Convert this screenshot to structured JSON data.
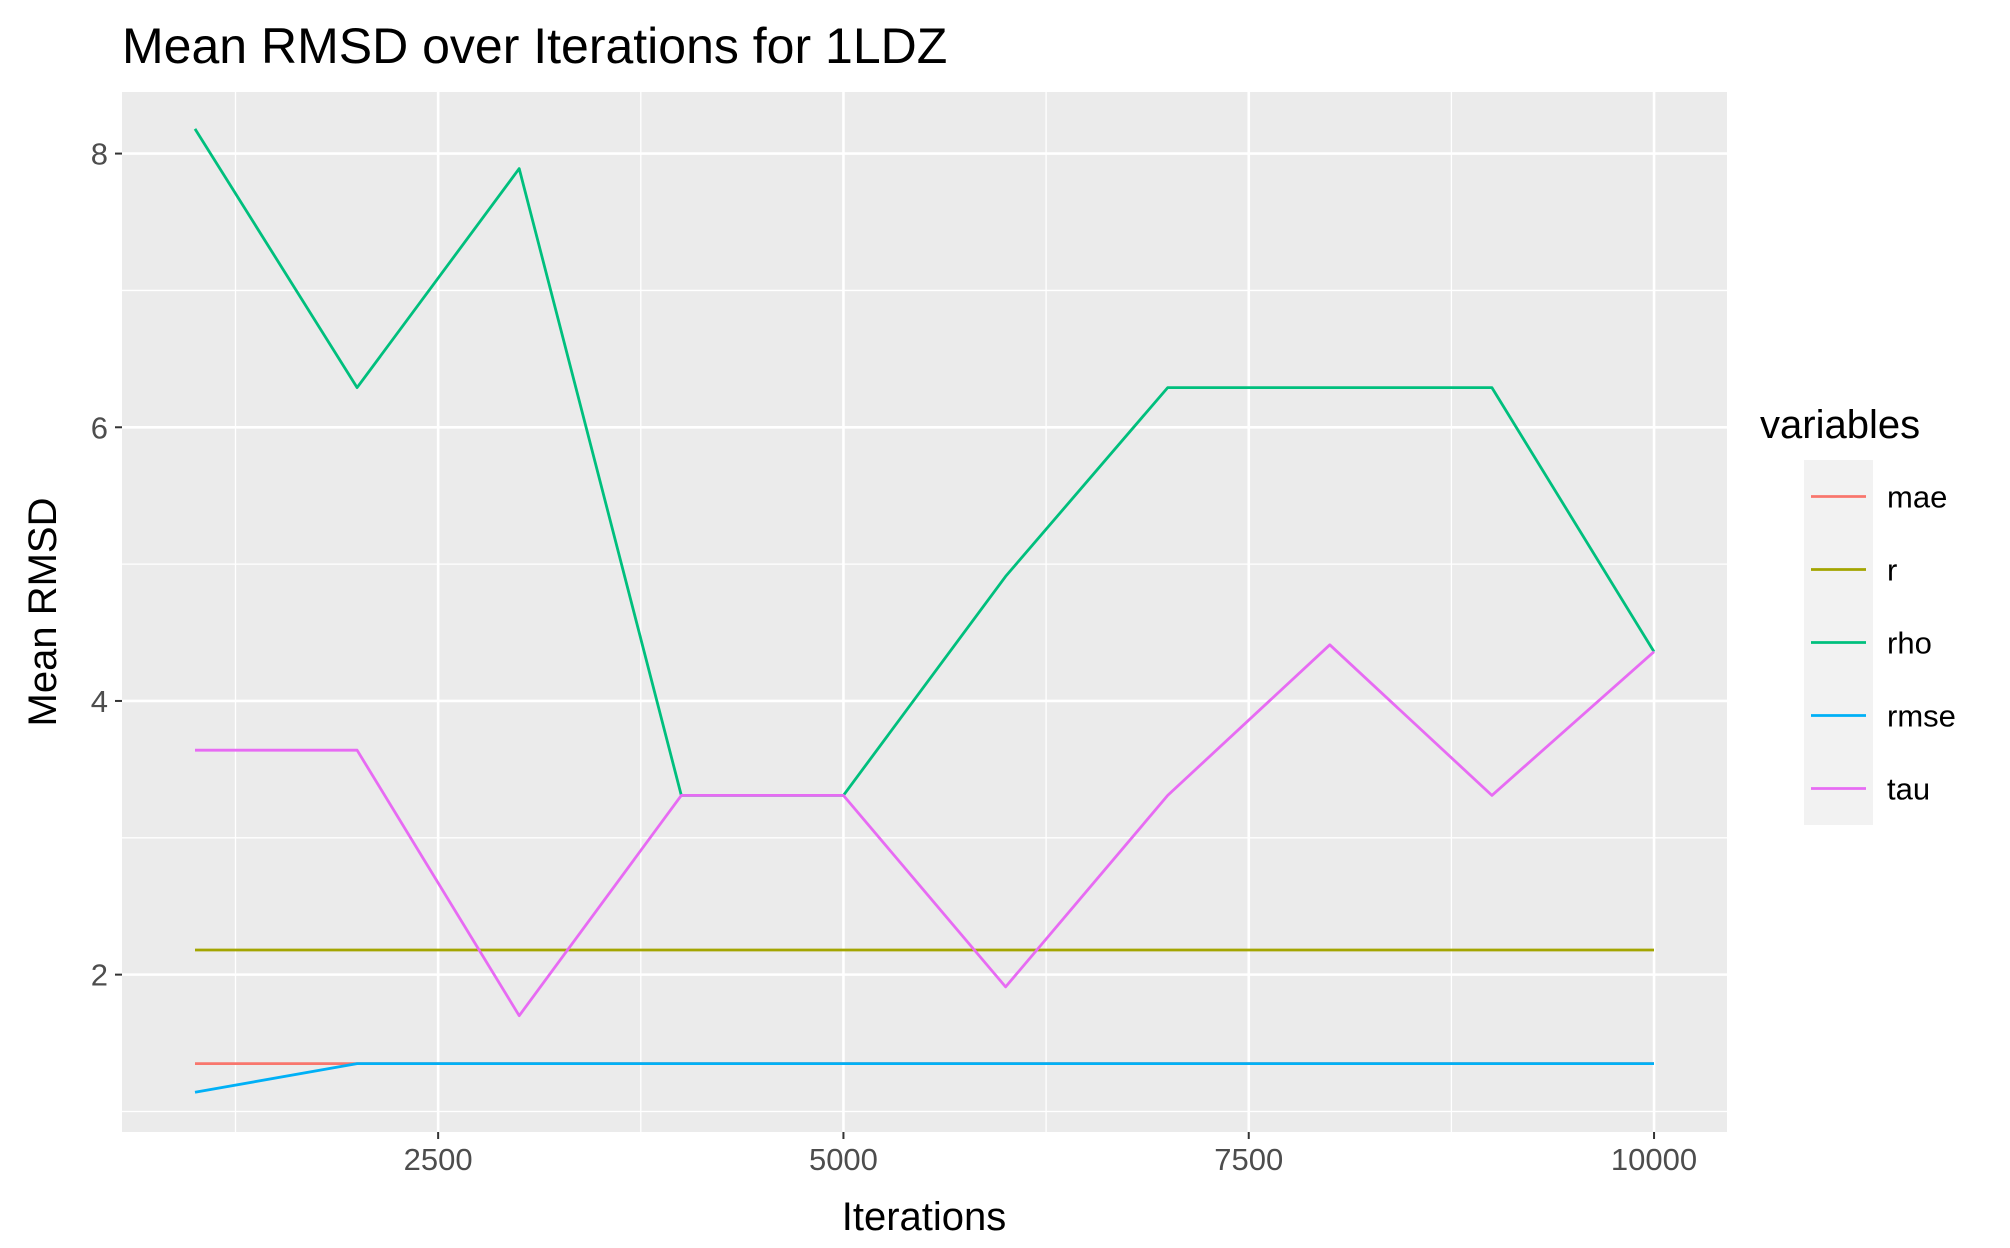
{
  "chart_data": {
    "type": "line",
    "title": "Mean RMSD over Iterations for 1LDZ",
    "xlabel": "Iterations",
    "ylabel": "Mean RMSD",
    "x": [
      1000,
      2000,
      3000,
      4000,
      5000,
      6000,
      7000,
      8000,
      9000,
      10000
    ],
    "xlim": [
      550,
      10450
    ],
    "ylim": [
      0.85,
      8.45
    ],
    "x_ticks": [
      2500,
      5000,
      7500,
      10000
    ],
    "x_tick_labels": [
      "2500",
      "5000",
      "7500",
      "10000"
    ],
    "y_ticks": [
      2,
      4,
      6,
      8
    ],
    "y_tick_labels": [
      "2",
      "4",
      "6",
      "8"
    ],
    "grid": true,
    "legend": {
      "title": "variables",
      "position": "right"
    },
    "series": [
      {
        "name": "mae",
        "color": "#F8766D",
        "values": [
          1.35,
          1.35,
          1.35,
          1.35,
          1.35,
          1.35,
          1.35,
          1.35,
          1.35,
          1.35
        ]
      },
      {
        "name": "r",
        "color": "#A3A500",
        "values": [
          2.18,
          2.18,
          2.18,
          2.18,
          2.18,
          2.18,
          2.18,
          2.18,
          2.18,
          2.18
        ]
      },
      {
        "name": "rho",
        "color": "#00BF7D",
        "values": [
          8.18,
          6.29,
          7.89,
          3.31,
          3.31,
          4.91,
          6.29,
          6.29,
          6.29,
          4.36
        ]
      },
      {
        "name": "rmse",
        "color": "#00B0F6",
        "values": [
          1.14,
          1.35,
          1.35,
          1.35,
          1.35,
          1.35,
          1.35,
          1.35,
          1.35,
          1.35
        ]
      },
      {
        "name": "tau",
        "color": "#E76BF3",
        "values": [
          3.64,
          3.64,
          1.7,
          3.31,
          3.31,
          1.91,
          3.31,
          4.41,
          3.31,
          4.36
        ]
      }
    ]
  }
}
